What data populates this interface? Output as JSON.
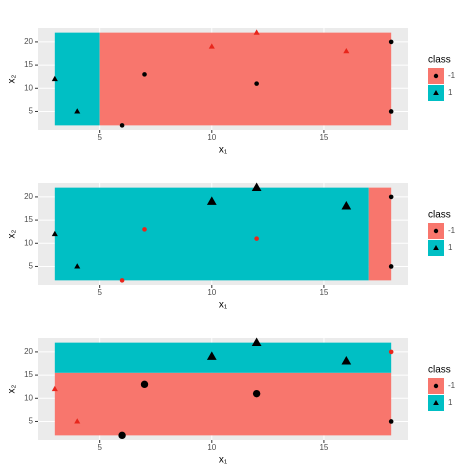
{
  "chart_data": [
    {
      "type": "scatter",
      "xlabel": "x₁",
      "ylabel": "x₂",
      "xlim": [
        2.25,
        18.75
      ],
      "ylim": [
        1,
        23
      ],
      "xticks": [
        5,
        10,
        15
      ],
      "yticks": [
        5,
        10,
        15,
        20
      ],
      "legend_title": "class",
      "regions": [
        {
          "xlim": [
            3,
            5
          ],
          "ylim": [
            2,
            22
          ],
          "class": "1"
        },
        {
          "xlim": [
            5,
            18
          ],
          "ylim": [
            2,
            22
          ],
          "class": "-1"
        }
      ],
      "series": [
        {
          "name": "-1",
          "color": "#f8766d",
          "shape": "circle",
          "x": [
            6,
            7,
            12,
            18,
            18
          ],
          "values": [
            2,
            13,
            11,
            20,
            5
          ],
          "point_colors": [
            "#000000",
            "#000000",
            "#000000",
            "#000000",
            "#000000"
          ],
          "sizes": [
            1,
            1,
            1,
            1,
            1
          ]
        },
        {
          "name": "1",
          "color": "#00bfc4",
          "shape": "triangle",
          "x": [
            3,
            4,
            10,
            12,
            16
          ],
          "values": [
            12,
            5,
            19,
            22,
            18
          ],
          "point_colors": [
            "#000000",
            "#000000",
            "#e8261c",
            "#e8261c",
            "#e8261c"
          ],
          "sizes": [
            1,
            1,
            1,
            1,
            1
          ]
        }
      ]
    },
    {
      "type": "scatter",
      "xlabel": "x₁",
      "ylabel": "x₂",
      "xlim": [
        2.25,
        18.75
      ],
      "ylim": [
        1,
        23
      ],
      "xticks": [
        5,
        10,
        15
      ],
      "yticks": [
        5,
        10,
        15,
        20
      ],
      "legend_title": "class",
      "regions": [
        {
          "xlim": [
            3,
            17
          ],
          "ylim": [
            2,
            22
          ],
          "class": "1"
        },
        {
          "xlim": [
            17,
            18
          ],
          "ylim": [
            2,
            22
          ],
          "class": "-1"
        }
      ],
      "series": [
        {
          "name": "-1",
          "color": "#f8766d",
          "shape": "circle",
          "x": [
            6,
            7,
            12,
            18,
            18
          ],
          "values": [
            2,
            13,
            11,
            20,
            5
          ],
          "point_colors": [
            "#e8261c",
            "#e8261c",
            "#e8261c",
            "#000000",
            "#000000"
          ],
          "sizes": [
            1,
            1,
            1,
            1,
            1
          ]
        },
        {
          "name": "1",
          "color": "#00bfc4",
          "shape": "triangle",
          "x": [
            3,
            4,
            10,
            12,
            16
          ],
          "values": [
            12,
            5,
            19,
            22,
            18
          ],
          "point_colors": [
            "#000000",
            "#000000",
            "#000000",
            "#000000",
            "#000000"
          ],
          "sizes": [
            1,
            1,
            2,
            2,
            2
          ]
        }
      ]
    },
    {
      "type": "scatter",
      "xlabel": "x₁",
      "ylabel": "x₂",
      "xlim": [
        2.25,
        18.75
      ],
      "ylim": [
        1,
        23
      ],
      "xticks": [
        5,
        10,
        15
      ],
      "yticks": [
        5,
        10,
        15,
        20
      ],
      "legend_title": "class",
      "regions": [
        {
          "xlim": [
            3,
            18
          ],
          "ylim": [
            2,
            15.5
          ],
          "class": "-1"
        },
        {
          "xlim": [
            3,
            18
          ],
          "ylim": [
            15.5,
            22
          ],
          "class": "1"
        }
      ],
      "series": [
        {
          "name": "-1",
          "color": "#f8766d",
          "shape": "circle",
          "x": [
            6,
            7,
            12,
            18,
            18
          ],
          "values": [
            2,
            13,
            11,
            20,
            5
          ],
          "point_colors": [
            "#000000",
            "#000000",
            "#000000",
            "#e8261c",
            "#000000"
          ],
          "sizes": [
            2,
            2,
            2,
            1,
            1
          ]
        },
        {
          "name": "1",
          "color": "#00bfc4",
          "shape": "triangle",
          "x": [
            3,
            4,
            10,
            12,
            16
          ],
          "values": [
            12,
            5,
            19,
            22,
            18
          ],
          "point_colors": [
            "#e8261c",
            "#e8261c",
            "#000000",
            "#000000",
            "#000000"
          ],
          "sizes": [
            1,
            1,
            2,
            2,
            2
          ]
        }
      ]
    }
  ]
}
